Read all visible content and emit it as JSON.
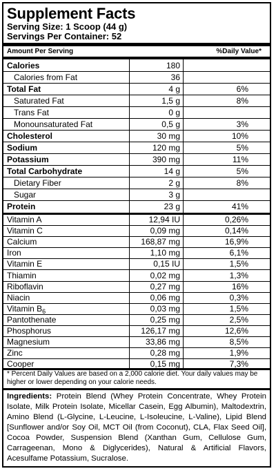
{
  "title": "Supplement Facts",
  "serving_size": "Serving Size: 1 Scoop (44 g)",
  "servings_per_container": "Servings Per Container: 52",
  "column_headers": {
    "amount": "Amount Per Serving",
    "dv": "%Daily Value*"
  },
  "rows": [
    {
      "name": "Calories",
      "amount": "180",
      "dv": "",
      "bold": true,
      "indent": false
    },
    {
      "name": "Calories from Fat",
      "amount": "36",
      "dv": "",
      "bold": false,
      "indent": true
    },
    {
      "name": "Total Fat",
      "amount": "4 g",
      "dv": "6%",
      "bold": true,
      "indent": false
    },
    {
      "name": "Saturated Fat",
      "amount": "1,5 g",
      "dv": "8%",
      "bold": false,
      "indent": true
    },
    {
      "name": "Trans Fat",
      "amount": "0 g",
      "dv": "",
      "bold": false,
      "indent": true
    },
    {
      "name": "Monounsaturated Fat",
      "amount": "0,5 g",
      "dv": "3%",
      "bold": false,
      "indent": true
    },
    {
      "name": "Cholesterol",
      "amount": "30 mg",
      "dv": "10%",
      "bold": true,
      "indent": false
    },
    {
      "name": "Sodium",
      "amount": "120 mg",
      "dv": "5%",
      "bold": true,
      "indent": false
    },
    {
      "name": "Potassium",
      "amount": "390 mg",
      "dv": "11%",
      "bold": true,
      "indent": false
    },
    {
      "name": "Total Carbohydrate",
      "amount": "14 g",
      "dv": "5%",
      "bold": true,
      "indent": false
    },
    {
      "name": "Dietary Fiber",
      "amount": "2 g",
      "dv": "8%",
      "bold": false,
      "indent": true
    },
    {
      "name": "Sugar",
      "amount": "3 g",
      "dv": "",
      "bold": false,
      "indent": true
    },
    {
      "name": "Protein",
      "amount": "23 g",
      "dv": "41%",
      "bold": true,
      "indent": false
    }
  ],
  "vitamins": [
    {
      "name": "Vitamin A",
      "amount": "12,94 IU",
      "dv": "0,26%"
    },
    {
      "name": "Vitamin C",
      "amount": "0,09 mg",
      "dv": "0,14%"
    },
    {
      "name": "Calcium",
      "amount": "168,87 mg",
      "dv": "16,9%"
    },
    {
      "name": "Iron",
      "amount": "1,10 mg",
      "dv": "6,1%"
    },
    {
      "name": "Vitamin E",
      "amount": "0,15 IU",
      "dv": "1,5%"
    },
    {
      "name": "Thiamin",
      "amount": "0,02 mg",
      "dv": "1,3%"
    },
    {
      "name": "Riboflavin",
      "amount": "0,27 mg",
      "dv": "16%"
    },
    {
      "name": "Niacin",
      "amount": "0,06 mg",
      "dv": "0,3%"
    },
    {
      "name": "Vitamin B",
      "subscript": "6",
      "amount": "0,03 mg",
      "dv": "1,5%"
    },
    {
      "name": "Pantothenate",
      "amount": "0,25 mg",
      "dv": "2,5%"
    },
    {
      "name": "Phosphorus",
      "amount": "126,17 mg",
      "dv": "12,6%"
    },
    {
      "name": "Magnesium",
      "amount": "33,86 mg",
      "dv": "8,5%"
    },
    {
      "name": "Zinc",
      "amount": "0,28 mg",
      "dv": "1,9%"
    },
    {
      "name": "Cooper",
      "amount": "0,15 mg",
      "dv": "7,3%"
    }
  ],
  "footnote": "* Percent Daily Values are based on a 2,000 calorie diet. Your daily values may be higher or lower depending on your calorie needs.",
  "ingredients_label": "Ingredients:",
  "ingredients_text": " Protein Blend (Whey Protein Concentrate, Whey Protein Isolate, Milk Protein Isolate, Micellar Casein, Egg Albumin), Maltodextrin, Amino Blend (L-Glycine, L-Leucine, L-Isoleucine, L-Valine), Lipid Blend [Sunflower and/or Soy Oil, MCT Oil (from Coconut), CLA, Flax Seed Oil], Cocoa Powder, Suspension Blend (Xanthan Gum, Cellulose Gum, Carrageenan, Mono & Diglycerides), Natural & Artificial Flavors, Acesulfame Potassium, Sucralose."
}
